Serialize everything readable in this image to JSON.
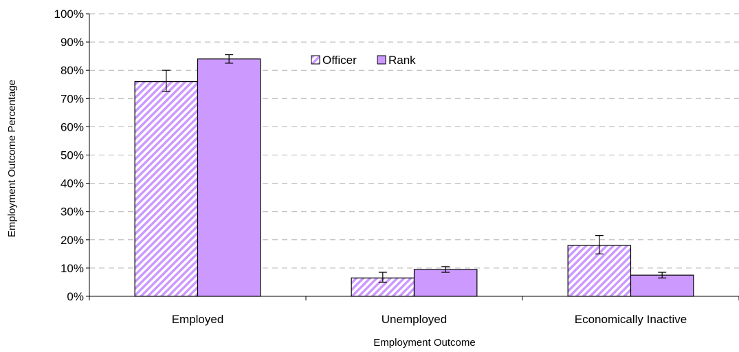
{
  "chart_data": {
    "type": "bar",
    "title": "",
    "xlabel": "Employment Outcome",
    "ylabel": "Employment Outcome Percentage",
    "categories": [
      "Employed",
      "Unemployed",
      "Economically Inactive"
    ],
    "series": [
      {
        "name": "Officer",
        "values": [
          76,
          6.5,
          18
        ],
        "error_low": [
          72.5,
          5,
          15
        ],
        "error_high": [
          80,
          8.5,
          21.5
        ],
        "fill": "hatched",
        "color": "#cc99ff"
      },
      {
        "name": "Rank",
        "values": [
          84,
          9.5,
          7.5
        ],
        "error_low": [
          82.5,
          8.5,
          6.5
        ],
        "error_high": [
          85.5,
          10.5,
          8.5
        ],
        "fill": "solid",
        "color": "#cc99ff"
      }
    ],
    "ylim": [
      0,
      100
    ],
    "yticks": [
      "0%",
      "10%",
      "20%",
      "30%",
      "40%",
      "50%",
      "60%",
      "70%",
      "80%",
      "90%",
      "100%"
    ],
    "grid": "horizontal dashed",
    "legend_position": "top-center"
  }
}
